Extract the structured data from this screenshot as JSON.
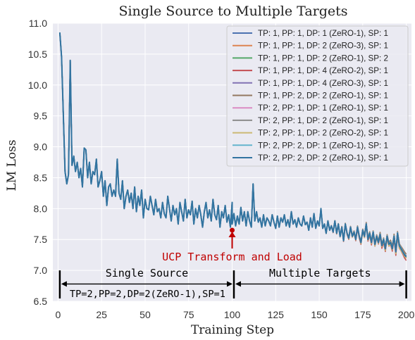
{
  "chart_data": {
    "type": "line",
    "title": "Single Source to Multiple Targets",
    "xlabel": "Training Step",
    "ylabel": "LM Loss",
    "xlim": [
      -3,
      203
    ],
    "ylim": [
      6.5,
      11.0
    ],
    "xticks": [
      0,
      25,
      50,
      75,
      100,
      125,
      150,
      175,
      200
    ],
    "yticks": [
      6.5,
      7.0,
      7.5,
      8.0,
      8.5,
      9.0,
      9.5,
      10.0,
      10.5,
      11.0
    ],
    "ytick_labels": [
      "6.5",
      "7.0",
      "7.5",
      "8.0",
      "8.5",
      "9.0",
      "9.5",
      "10.0",
      "10.5",
      "11.0"
    ],
    "grid": true,
    "background": "#eaeaf2",
    "legend_position": "upper-right",
    "base_loss_first_100": [
      10.85,
      10.45,
      9.55,
      8.6,
      8.4,
      8.55,
      10.4,
      8.7,
      8.85,
      8.6,
      8.75,
      8.5,
      8.65,
      8.35,
      8.98,
      8.95,
      8.5,
      8.75,
      8.4,
      8.6,
      8.55,
      8.8,
      8.35,
      8.45,
      8.6,
      8.2,
      8.45,
      8.05,
      8.35,
      8.4,
      8.2,
      8.3,
      8.2,
      8.8,
      8.25,
      8.15,
      8.45,
      8.0,
      8.2,
      8.3,
      8.1,
      8.25,
      8.0,
      8.35,
      7.95,
      8.2,
      8.05,
      8.3,
      7.85,
      8.15,
      8.0,
      7.98,
      8.2,
      8.05,
      7.9,
      8.15,
      7.95,
      8.0,
      7.85,
      8.1,
      7.92,
      7.85,
      8.2,
      8.0,
      7.8,
      8.05,
      7.9,
      8.0,
      7.75,
      8.1,
      7.95,
      7.8,
      8.15,
      7.85,
      7.98,
      7.9,
      8.12,
      7.75,
      8.0,
      7.85,
      8.05,
      7.9,
      7.7,
      7.95,
      8.1,
      7.85,
      7.98,
      7.8,
      8.15,
      7.9,
      7.82,
      8.05,
      7.7,
      7.95,
      7.85,
      8.05,
      7.78,
      7.9,
      7.7,
      8.1
    ],
    "base_loss_second_100": [
      7.75,
      7.92,
      7.72,
      7.88,
      7.75,
      8.02,
      7.8,
      7.95,
      7.72,
      7.95,
      7.8,
      7.7,
      8.4,
      7.8,
      7.95,
      7.78,
      7.85,
      7.7,
      7.9,
      7.72,
      7.85,
      7.8,
      7.72,
      7.9,
      7.78,
      7.68,
      7.88,
      7.7,
      7.85,
      7.78,
      7.9,
      7.72,
      7.82,
      7.7,
      7.95,
      7.75,
      7.82,
      7.7,
      7.85,
      7.75,
      7.72,
      7.88,
      7.74,
      7.78,
      7.65,
      7.85,
      7.7,
      7.92,
      7.68,
      7.8,
      7.72,
      8.0,
      7.68,
      7.75,
      7.6,
      7.8,
      7.65,
      7.72,
      7.62,
      7.8,
      7.6,
      7.75,
      7.55,
      7.7,
      7.48,
      7.75,
      7.6,
      7.52,
      7.7,
      7.55,
      7.62,
      7.5,
      7.7,
      7.55,
      7.45,
      7.65,
      7.55,
      7.75,
      7.5,
      7.6,
      7.45,
      7.62,
      7.42,
      7.55,
      7.45,
      7.58,
      7.4,
      7.5,
      7.35,
      7.55,
      7.42,
      7.45,
      7.35,
      7.55,
      7.3,
      7.6,
      7.4,
      7.35,
      7.3,
      7.25,
      7.22
    ],
    "series": [
      {
        "name": "TP: 1, PP: 1, DP: 1 (ZeRO-1), SP: 1",
        "color": "#4c72b0",
        "offset": 0.0
      },
      {
        "name": "TP: 1, PP: 1, DP: 2 (ZeRO-3), SP: 1",
        "color": "#dd8452",
        "offset": 0.03
      },
      {
        "name": "TP: 1, PP: 1, DP: 2 (ZeRO-1), SP: 2",
        "color": "#55a868",
        "offset": -0.02
      },
      {
        "name": "TP: 1, PP: 1, DP: 4 (ZeRO-2), SP: 1",
        "color": "#c44e52",
        "offset": -0.05
      },
      {
        "name": "TP: 1, PP: 1, DP: 4 (ZeRO-3), SP: 1",
        "color": "#8172b3",
        "offset": 0.015
      },
      {
        "name": "TP: 1, PP: 2, DP: 2 (ZeRO-1), SP: 1",
        "color": "#937860",
        "offset": 0.04
      },
      {
        "name": "TP: 2, PP: 1, DP: 1 (ZeRO-1), SP: 1",
        "color": "#da8bc3",
        "offset": -0.01
      },
      {
        "name": "TP: 2, PP: 1, DP: 2 (ZeRO-1), SP: 1",
        "color": "#8c8c8c",
        "offset": 0.025
      },
      {
        "name": "TP: 2, PP: 1, DP: 2 (ZeRO-2), SP: 1",
        "color": "#ccb974",
        "offset": -0.03
      },
      {
        "name": "TP: 2, PP: 2, DP: 1 (ZeRO-1), SP: 1",
        "color": "#64b5cd",
        "offset": 0.01
      },
      {
        "name": "TP: 2, PP: 2, DP: 2 (ZeRO-1), SP: 1",
        "color": "#3274a1",
        "offset": 0.0
      }
    ],
    "annotations": {
      "transform_label": "UCP Transform and Load",
      "transform_step": 100,
      "transform_loss": 7.65,
      "transform_color": "#c00000",
      "single_source_label": "Single Source",
      "single_source_config": "TP=2,PP=2,DP=2(ZeRO-1),SP=1",
      "multiple_targets_label": "Multiple Targets",
      "bracket_left_step": 1,
      "bracket_mid_step": 101,
      "bracket_right_step": 200
    }
  }
}
